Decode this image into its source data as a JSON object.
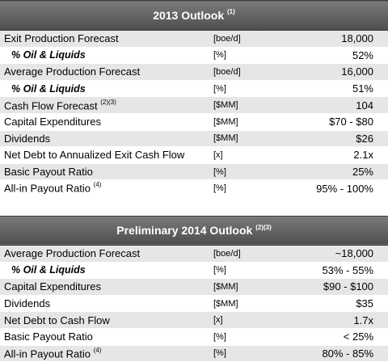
{
  "outlook_2013": {
    "title": "2013 Outlook",
    "title_note": "(1)",
    "rows": [
      {
        "label": "Exit Production Forecast",
        "note": "",
        "unit": "[boe/d]",
        "value": "18,000",
        "indent": false
      },
      {
        "label": "% Oil & Liquids",
        "note": "",
        "unit": "[%]",
        "value": "52%",
        "indent": true
      },
      {
        "label": "Average Production Forecast",
        "note": "",
        "unit": "[boe/d]",
        "value": "16,000",
        "indent": false
      },
      {
        "label": "% Oil & Liquids",
        "note": "",
        "unit": "[%]",
        "value": "51%",
        "indent": true
      },
      {
        "label": "Cash Flow Forecast",
        "note": "(2)(3)",
        "unit": "[$MM]",
        "value": "104",
        "indent": false
      },
      {
        "label": "Capital Expenditures",
        "note": "",
        "unit": "[$MM]",
        "value": "$70 - $80",
        "indent": false
      },
      {
        "label": "Dividends",
        "note": "",
        "unit": "[$MM]",
        "value": "$26",
        "indent": false
      },
      {
        "label": "Net Debt to Annualized Exit Cash Flow",
        "note": "",
        "unit": "[x]",
        "value": "2.1x",
        "indent": false
      },
      {
        "label": "Basic Payout Ratio",
        "note": "",
        "unit": "[%]",
        "value": "25%",
        "indent": false
      },
      {
        "label": "All-in Payout Ratio",
        "note": "(4)",
        "unit": "[%]",
        "value": "95% - 100%",
        "indent": false
      }
    ]
  },
  "outlook_2014": {
    "title": "Preliminary 2014 Outlook",
    "title_note": "(2)(3)",
    "rows": [
      {
        "label": "Average Production Forecast",
        "note": "",
        "unit": "[boe/d]",
        "value": "~18,000",
        "indent": false
      },
      {
        "label": "% Oil & Liquids",
        "note": "",
        "unit": "[%]",
        "value": "53% - 55%",
        "indent": true
      },
      {
        "label": "Capital Expenditures",
        "note": "",
        "unit": "[$MM]",
        "value": "$90 - $100",
        "indent": false
      },
      {
        "label": "Dividends",
        "note": "",
        "unit": "[$MM]",
        "value": "$35",
        "indent": false
      },
      {
        "label": "Net Debt to Cash Flow",
        "note": "",
        "unit": "[x]",
        "value": "1.7x",
        "indent": false
      },
      {
        "label": "Basic Payout Ratio",
        "note": "",
        "unit": "[%]",
        "value": "< 25%",
        "indent": false
      },
      {
        "label": "All-in Payout Ratio",
        "note": "(4)",
        "unit": "[%]",
        "value": "80% - 85%",
        "indent": false
      }
    ]
  },
  "colors": {
    "header_bg": "#5f5f5f",
    "header_text": "#ffffff",
    "row_shade": "#e6e6e6"
  }
}
